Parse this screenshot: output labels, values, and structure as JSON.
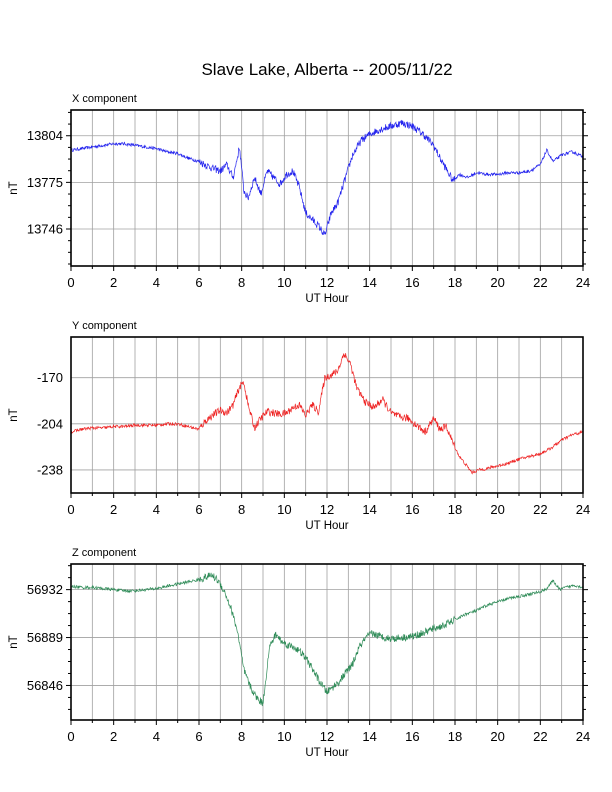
{
  "chart_data": [
    {
      "type": "line",
      "title": "Slave Lake, Alberta -- 2005/11/22",
      "subtitle": "X component",
      "xlabel": "UT Hour",
      "ylabel": "nT",
      "xlim": [
        0,
        24
      ],
      "ylim": [
        13723,
        13820
      ],
      "xticks": [
        0,
        2,
        4,
        6,
        8,
        10,
        12,
        14,
        16,
        18,
        20,
        22,
        24
      ],
      "yticks": [
        13746,
        13775,
        13804
      ],
      "grid": true,
      "color": "#2222ee",
      "x": [
        0,
        0.5,
        1,
        1.5,
        2,
        2.5,
        3,
        3.5,
        4,
        4.5,
        5,
        5.5,
        6,
        6.3,
        6.6,
        7,
        7.3,
        7.6,
        7.9,
        8.1,
        8.3,
        8.6,
        8.9,
        9.2,
        9.5,
        9.8,
        10.1,
        10.4,
        10.7,
        11,
        11.3,
        11.6,
        11.9,
        12.2,
        12.5,
        12.8,
        13.2,
        13.6,
        14,
        14.5,
        15,
        15.5,
        16,
        16.5,
        17,
        17.3,
        17.6,
        17.9,
        18.2,
        18.6,
        19,
        19.5,
        20,
        20.5,
        21,
        21.5,
        22,
        22.3,
        22.6,
        23,
        23.5,
        24
      ],
      "values": [
        13795,
        13796,
        13797,
        13798,
        13799,
        13799,
        13798,
        13797,
        13796,
        13794,
        13793,
        13790,
        13788,
        13786,
        13784,
        13782,
        13786,
        13778,
        13797,
        13770,
        13765,
        13778,
        13768,
        13782,
        13778,
        13774,
        13780,
        13782,
        13772,
        13756,
        13752,
        13748,
        13742,
        13756,
        13762,
        13775,
        13792,
        13801,
        13805,
        13808,
        13810,
        13812,
        13810,
        13805,
        13798,
        13790,
        13783,
        13776,
        13780,
        13778,
        13781,
        13780,
        13780,
        13781,
        13781,
        13782,
        13786,
        13795,
        13788,
        13792,
        13794,
        13791
      ]
    },
    {
      "type": "line",
      "subtitle": "Y component",
      "xlabel": "UT Hour",
      "ylabel": "nT",
      "xlim": [
        0,
        24
      ],
      "ylim": [
        -255,
        -140
      ],
      "xticks": [
        0,
        2,
        4,
        6,
        8,
        10,
        12,
        14,
        16,
        18,
        20,
        22,
        24
      ],
      "yticks": [
        -170,
        -204,
        -238
      ],
      "grid": true,
      "color": "#ee2222",
      "x": [
        0,
        0.5,
        1,
        1.5,
        2,
        2.5,
        3,
        3.5,
        4,
        4.5,
        5,
        5.5,
        6,
        6.3,
        6.6,
        7,
        7.3,
        7.6,
        7.9,
        8.1,
        8.3,
        8.6,
        8.9,
        9.2,
        9.5,
        9.8,
        10.1,
        10.4,
        10.7,
        11,
        11.3,
        11.6,
        11.9,
        12.2,
        12.5,
        12.8,
        13.1,
        13.4,
        13.8,
        14.2,
        14.6,
        15,
        15.4,
        15.8,
        16.2,
        16.6,
        17,
        17.3,
        17.6,
        17.9,
        18.2,
        18.5,
        18.8,
        19.1,
        19.5,
        20,
        20.5,
        21,
        21.5,
        22,
        22.5,
        23,
        23.5,
        24
      ],
      "values": [
        -210,
        -208,
        -207,
        -207,
        -206,
        -206,
        -205,
        -205,
        -205,
        -204,
        -204,
        -206,
        -208,
        -202,
        -198,
        -194,
        -196,
        -190,
        -177,
        -173,
        -190,
        -207,
        -200,
        -195,
        -196,
        -197,
        -196,
        -192,
        -190,
        -198,
        -190,
        -195,
        -170,
        -168,
        -165,
        -152,
        -160,
        -178,
        -188,
        -192,
        -186,
        -196,
        -199,
        -200,
        -205,
        -210,
        -200,
        -208,
        -206,
        -218,
        -228,
        -234,
        -240,
        -238,
        -237,
        -235,
        -233,
        -230,
        -228,
        -226,
        -222,
        -216,
        -212,
        -210
      ]
    },
    {
      "type": "line",
      "subtitle": "Z component",
      "xlabel": "UT Hour",
      "ylabel": "nT",
      "xlim": [
        0,
        24
      ],
      "ylim": [
        56815,
        56955
      ],
      "xticks": [
        0,
        2,
        4,
        6,
        8,
        10,
        12,
        14,
        16,
        18,
        20,
        22,
        24
      ],
      "yticks": [
        56846,
        56889,
        56932
      ],
      "grid": true,
      "color": "#2e8b57",
      "x": [
        0,
        0.5,
        1,
        1.5,
        2,
        2.5,
        3,
        3.5,
        4,
        4.5,
        5,
        5.5,
        6,
        6.3,
        6.6,
        6.9,
        7.2,
        7.5,
        7.8,
        8.1,
        8.4,
        8.7,
        9,
        9.3,
        9.6,
        9.9,
        10.2,
        10.5,
        10.8,
        11.1,
        11.4,
        11.7,
        12,
        12.3,
        12.6,
        12.9,
        13.2,
        13.5,
        13.8,
        14.1,
        14.5,
        15,
        15.5,
        16,
        16.5,
        17,
        17.5,
        18,
        18.5,
        19,
        19.5,
        20,
        20.5,
        21,
        21.5,
        22,
        22.3,
        22.6,
        22.9,
        23.2,
        23.6,
        24
      ],
      "values": [
        56935,
        56934,
        56934,
        56933,
        56932,
        56931,
        56931,
        56932,
        56933,
        56935,
        56937,
        56939,
        56941,
        56943,
        56945,
        56940,
        56930,
        56915,
        56895,
        56860,
        56845,
        56835,
        56830,
        56880,
        56892,
        56885,
        56882,
        56880,
        56875,
        56868,
        56858,
        56848,
        56840,
        56845,
        56850,
        56858,
        56865,
        56880,
        56888,
        56893,
        56890,
        56888,
        56889,
        56890,
        56893,
        56897,
        56900,
        56905,
        56910,
        56913,
        56918,
        56921,
        56924,
        56926,
        56928,
        56930,
        56933,
        56940,
        56932,
        56934,
        56936,
        56934
      ]
    }
  ]
}
